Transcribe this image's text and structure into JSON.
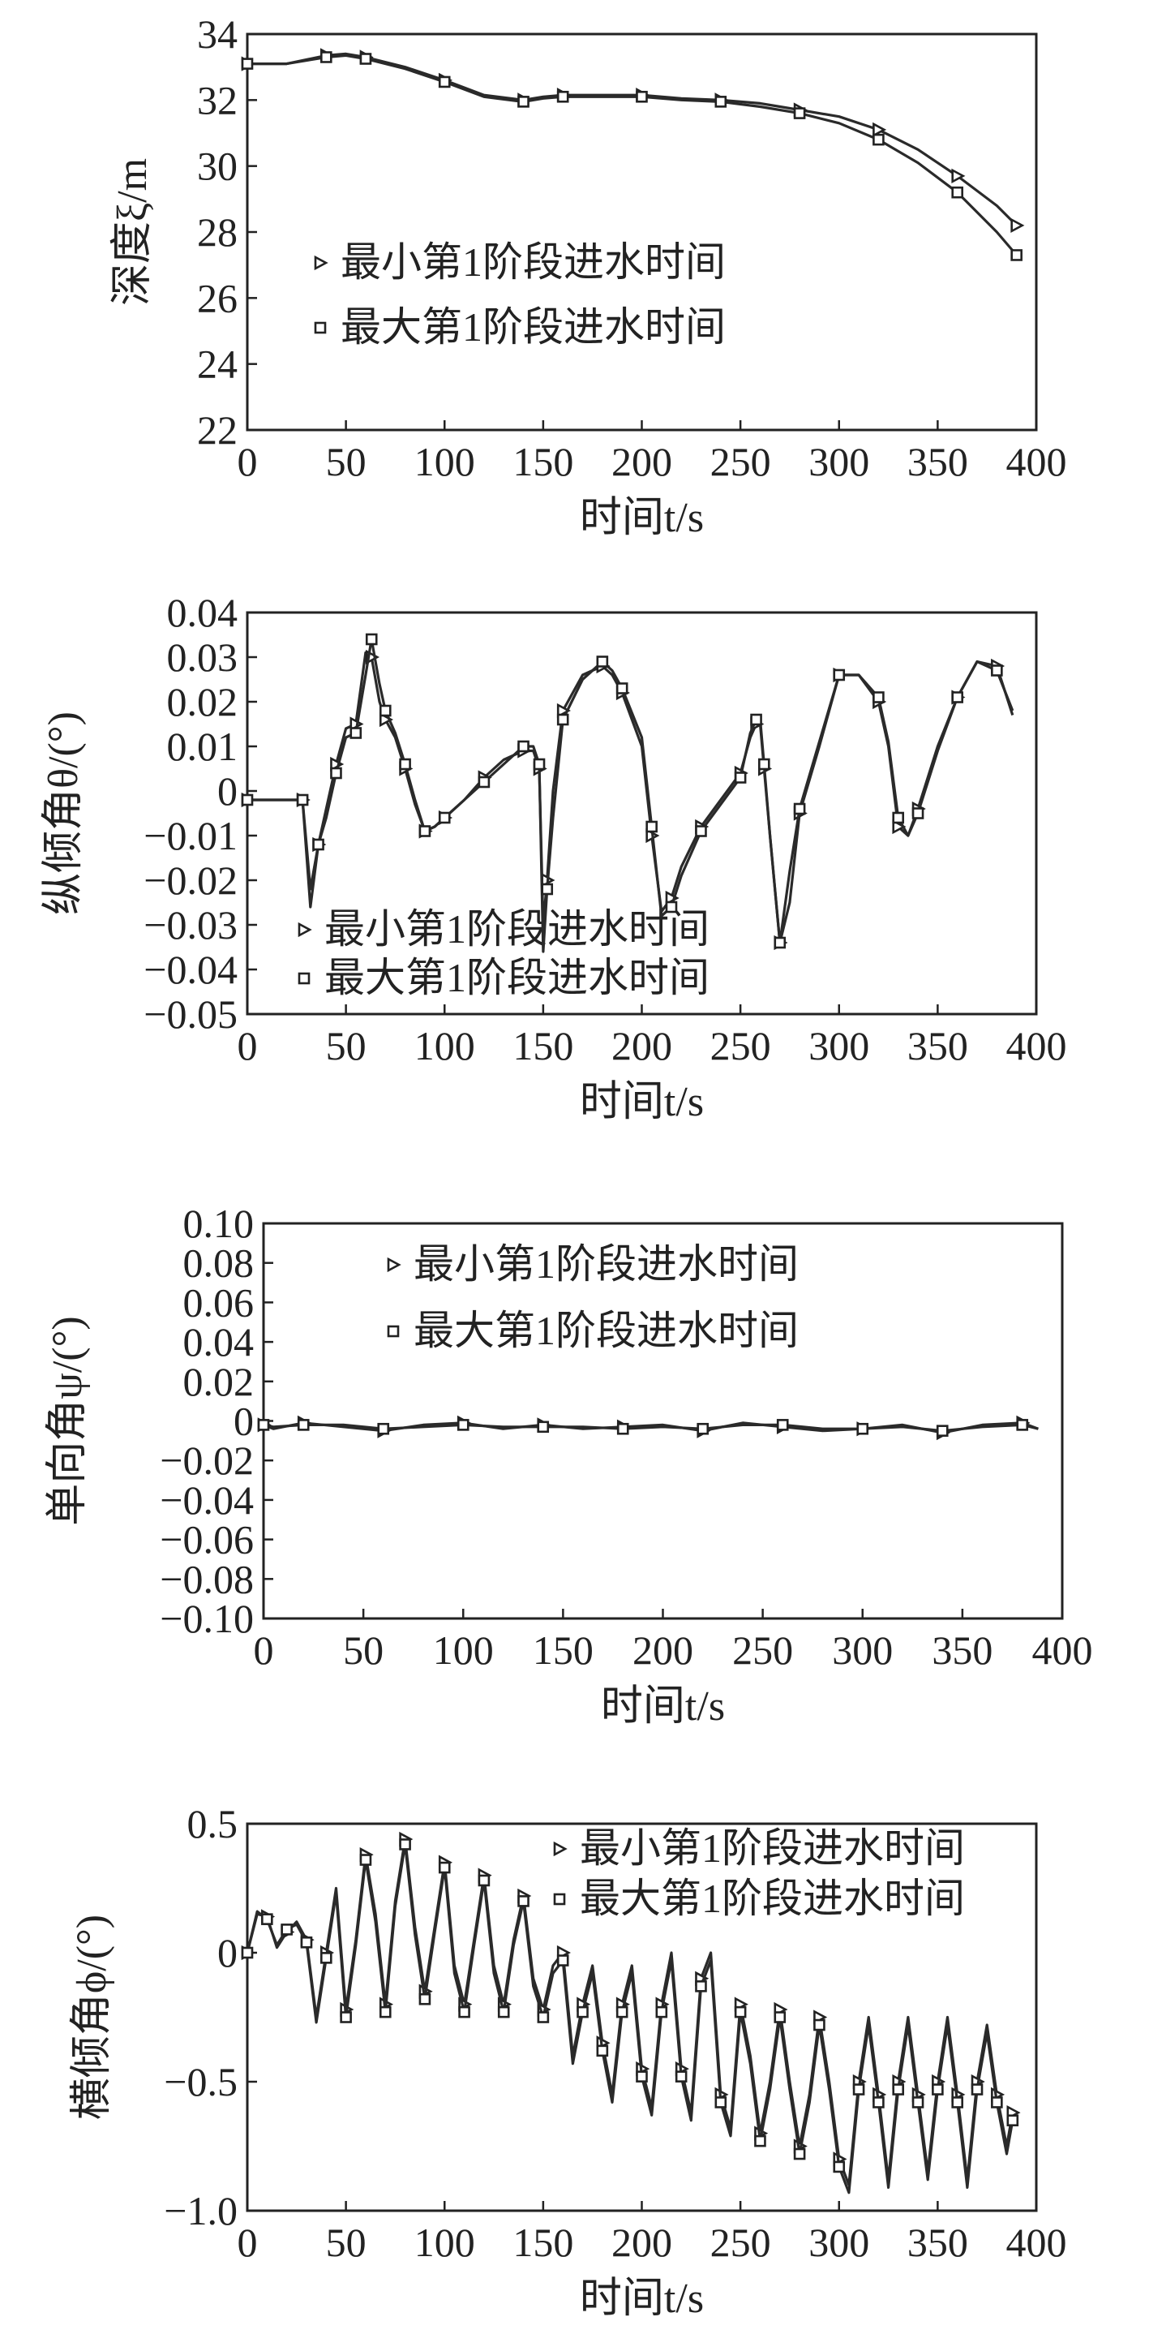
{
  "chart_data": [
    {
      "type": "line",
      "xlabel": "时间t/s",
      "ylabel": "深度ξ/m",
      "xlim": [
        0,
        400
      ],
      "ylim": [
        22,
        34
      ],
      "xticks": [
        "0",
        "50",
        "100",
        "150",
        "200",
        "250",
        "300",
        "350",
        "400"
      ],
      "yticks": [
        "22",
        "24",
        "26",
        "28",
        "30",
        "32",
        "34"
      ],
      "legend_position": "center-left",
      "series": [
        {
          "name": "最小第1阶段进水时间",
          "marker": "triangle-right",
          "x": [
            0,
            20,
            40,
            50,
            60,
            80,
            100,
            120,
            140,
            150,
            160,
            180,
            200,
            220,
            240,
            260,
            280,
            300,
            320,
            340,
            360,
            380,
            390
          ],
          "y": [
            33.1,
            33.1,
            33.35,
            33.4,
            33.3,
            33.0,
            32.6,
            32.15,
            32.0,
            32.1,
            32.15,
            32.15,
            32.15,
            32.05,
            32.0,
            31.9,
            31.7,
            31.5,
            31.1,
            30.5,
            29.7,
            28.8,
            28.2
          ]
        },
        {
          "name": "最大第1阶段进水时间",
          "marker": "square",
          "x": [
            0,
            20,
            40,
            50,
            60,
            80,
            100,
            120,
            140,
            150,
            160,
            180,
            200,
            220,
            240,
            260,
            280,
            300,
            320,
            340,
            360,
            380,
            390
          ],
          "y": [
            33.1,
            33.1,
            33.3,
            33.35,
            33.25,
            32.95,
            32.55,
            32.1,
            31.95,
            32.05,
            32.1,
            32.1,
            32.1,
            32.0,
            31.95,
            31.8,
            31.6,
            31.3,
            30.8,
            30.1,
            29.2,
            28.0,
            27.3
          ]
        }
      ]
    },
    {
      "type": "line",
      "xlabel": "时间t/s",
      "ylabel": "纵倾角θ/(°)",
      "xlim": [
        0,
        400
      ],
      "ylim": [
        -0.05,
        0.04
      ],
      "xticks": [
        "0",
        "50",
        "100",
        "150",
        "200",
        "250",
        "300",
        "350",
        "400"
      ],
      "yticks": [
        "−0.05",
        "−0.04",
        "−0.03",
        "−0.02",
        "−0.01",
        "0",
        "0.01",
        "0.02",
        "0.03",
        "0.04"
      ],
      "legend_position": "bottom-left",
      "series": [
        {
          "name": "最小第1阶段进水时间",
          "marker": "triangle-right",
          "x": [
            0,
            20,
            28,
            32,
            36,
            40,
            45,
            50,
            55,
            60,
            63,
            67,
            70,
            75,
            80,
            85,
            90,
            95,
            100,
            110,
            120,
            130,
            140,
            145,
            148,
            150,
            152,
            155,
            160,
            170,
            180,
            185,
            190,
            200,
            205,
            210,
            215,
            220,
            230,
            240,
            250,
            255,
            258,
            260,
            262,
            265,
            270,
            275,
            280,
            290,
            300,
            310,
            320,
            325,
            330,
            335,
            340,
            350,
            360,
            370,
            380,
            388
          ],
          "y": [
            -0.002,
            -0.002,
            -0.002,
            -0.026,
            -0.012,
            -0.004,
            0.006,
            0.014,
            0.015,
            0.031,
            0.03,
            0.02,
            0.016,
            0.012,
            0.005,
            -0.003,
            -0.009,
            -0.008,
            -0.006,
            -0.002,
            0.003,
            0.007,
            0.009,
            0.009,
            0.005,
            -0.03,
            -0.02,
            0.0,
            0.018,
            0.026,
            0.028,
            0.026,
            0.022,
            0.01,
            -0.01,
            -0.027,
            -0.024,
            -0.017,
            -0.008,
            -0.002,
            0.004,
            0.012,
            0.015,
            0.015,
            0.005,
            -0.01,
            -0.034,
            -0.025,
            -0.005,
            0.01,
            0.026,
            0.026,
            0.02,
            0.01,
            -0.008,
            -0.01,
            -0.004,
            0.01,
            0.021,
            0.029,
            0.028,
            0.017
          ]
        },
        {
          "name": "最大第1阶段进水时间",
          "marker": "square",
          "x": [
            0,
            20,
            28,
            32,
            36,
            40,
            45,
            50,
            55,
            60,
            63,
            67,
            70,
            75,
            80,
            85,
            90,
            95,
            100,
            110,
            120,
            130,
            140,
            145,
            148,
            150,
            152,
            155,
            160,
            170,
            180,
            185,
            190,
            200,
            205,
            210,
            215,
            220,
            230,
            240,
            250,
            255,
            258,
            260,
            262,
            265,
            270,
            275,
            280,
            290,
            300,
            310,
            320,
            325,
            330,
            335,
            340,
            350,
            360,
            370,
            380,
            388
          ],
          "y": [
            -0.002,
            -0.002,
            -0.002,
            -0.022,
            -0.012,
            -0.006,
            0.004,
            0.012,
            0.013,
            0.026,
            0.034,
            0.024,
            0.018,
            0.013,
            0.006,
            -0.002,
            -0.009,
            -0.008,
            -0.006,
            -0.002,
            0.002,
            0.006,
            0.01,
            0.01,
            0.006,
            -0.036,
            -0.022,
            -0.006,
            0.016,
            0.025,
            0.029,
            0.027,
            0.023,
            0.012,
            -0.008,
            -0.028,
            -0.026,
            -0.019,
            -0.009,
            -0.003,
            0.003,
            0.013,
            0.016,
            0.016,
            0.006,
            -0.01,
            -0.034,
            -0.018,
            -0.004,
            0.011,
            0.026,
            0.026,
            0.021,
            0.011,
            -0.006,
            -0.01,
            -0.005,
            0.009,
            0.021,
            0.029,
            0.027,
            0.018
          ]
        }
      ]
    },
    {
      "type": "line",
      "xlabel": "时间t/s",
      "ylabel": "单向角ψ/(°)",
      "xlim": [
        0,
        400
      ],
      "ylim": [
        -0.1,
        0.1
      ],
      "xticks": [
        "0",
        "50",
        "100",
        "150",
        "200",
        "250",
        "300",
        "350",
        "400"
      ],
      "yticks": [
        "−0.10",
        "−0.08",
        "−0.06",
        "−0.04",
        "−0.02",
        "0",
        "0.02",
        "0.04",
        "0.06",
        "0.08",
        "0.10"
      ],
      "legend_position": "top-center",
      "series": [
        {
          "name": "最小第1阶段进水时间",
          "marker": "triangle-right",
          "x": [
            0,
            5,
            20,
            40,
            60,
            80,
            100,
            120,
            140,
            160,
            180,
            200,
            220,
            240,
            260,
            280,
            300,
            320,
            340,
            360,
            380,
            388
          ],
          "y": [
            -0.002,
            -0.004,
            -0.001,
            -0.003,
            -0.005,
            -0.002,
            -0.001,
            -0.004,
            -0.002,
            -0.004,
            -0.003,
            -0.002,
            -0.005,
            -0.001,
            -0.003,
            -0.005,
            -0.004,
            -0.002,
            -0.006,
            -0.002,
            -0.001,
            -0.004
          ]
        },
        {
          "name": "最大第1阶段进水时间",
          "marker": "square",
          "x": [
            0,
            5,
            20,
            40,
            60,
            80,
            100,
            120,
            140,
            160,
            180,
            200,
            220,
            240,
            260,
            280,
            300,
            320,
            340,
            360,
            380,
            388
          ],
          "y": [
            -0.002,
            -0.003,
            -0.002,
            -0.002,
            -0.004,
            -0.003,
            -0.002,
            -0.003,
            -0.003,
            -0.003,
            -0.004,
            -0.003,
            -0.004,
            -0.002,
            -0.002,
            -0.004,
            -0.004,
            -0.003,
            -0.005,
            -0.003,
            -0.002,
            -0.004
          ]
        }
      ]
    },
    {
      "type": "line",
      "xlabel": "时间t/s",
      "ylabel": "横倾角ϕ/(°)",
      "xlim": [
        0,
        400
      ],
      "ylim": [
        -1.0,
        0.5
      ],
      "xticks": [
        "0",
        "50",
        "100",
        "150",
        "200",
        "250",
        "300",
        "350",
        "400"
      ],
      "yticks": [
        "−1.0",
        "−0.5",
        "0",
        "0.5"
      ],
      "legend_position": "top-right",
      "series": [
        {
          "name": "最小第1阶段进水时间",
          "marker": "triangle-right",
          "x": [
            0,
            5,
            10,
            15,
            20,
            25,
            30,
            35,
            40,
            45,
            50,
            55,
            60,
            65,
            70,
            75,
            80,
            85,
            90,
            95,
            100,
            105,
            110,
            115,
            120,
            125,
            130,
            135,
            140,
            145,
            150,
            155,
            160,
            165,
            170,
            175,
            180,
            185,
            190,
            195,
            200,
            205,
            210,
            215,
            220,
            225,
            230,
            235,
            240,
            245,
            250,
            255,
            260,
            265,
            270,
            275,
            280,
            285,
            290,
            295,
            300,
            305,
            310,
            315,
            320,
            325,
            330,
            335,
            340,
            345,
            350,
            355,
            360,
            365,
            370,
            375,
            380,
            385,
            388
          ],
          "y": [
            0.0,
            0.15,
            0.14,
            0.02,
            0.08,
            0.12,
            0.05,
            -0.25,
            0.0,
            0.25,
            -0.22,
            0.05,
            0.38,
            0.15,
            -0.2,
            0.2,
            0.44,
            0.1,
            -0.15,
            0.1,
            0.35,
            -0.05,
            -0.2,
            0.05,
            0.3,
            -0.05,
            -0.2,
            0.05,
            0.22,
            -0.1,
            -0.22,
            -0.05,
            0.0,
            -0.4,
            -0.2,
            -0.05,
            -0.35,
            -0.55,
            -0.2,
            -0.05,
            -0.45,
            -0.6,
            -0.2,
            0.0,
            -0.45,
            -0.62,
            -0.1,
            0.0,
            -0.55,
            -0.68,
            -0.2,
            -0.4,
            -0.7,
            -0.5,
            -0.22,
            -0.5,
            -0.75,
            -0.55,
            -0.25,
            -0.5,
            -0.8,
            -0.9,
            -0.5,
            -0.25,
            -0.55,
            -0.88,
            -0.5,
            -0.25,
            -0.55,
            -0.85,
            -0.5,
            -0.25,
            -0.55,
            -0.88,
            -0.5,
            -0.28,
            -0.55,
            -0.75,
            -0.62
          ]
        },
        {
          "name": "最大第1阶段进水时间",
          "marker": "square",
          "x": [
            0,
            5,
            10,
            15,
            20,
            25,
            30,
            35,
            40,
            45,
            50,
            55,
            60,
            65,
            70,
            75,
            80,
            85,
            90,
            95,
            100,
            105,
            110,
            115,
            120,
            125,
            130,
            135,
            140,
            145,
            150,
            155,
            160,
            165,
            170,
            175,
            180,
            185,
            190,
            195,
            200,
            205,
            210,
            215,
            220,
            225,
            230,
            235,
            240,
            245,
            250,
            255,
            260,
            265,
            270,
            275,
            280,
            285,
            290,
            295,
            300,
            305,
            310,
            315,
            320,
            325,
            330,
            335,
            340,
            345,
            350,
            355,
            360,
            365,
            370,
            375,
            380,
            385,
            388
          ],
          "y": [
            0.0,
            0.16,
            0.13,
            0.03,
            0.09,
            0.11,
            0.04,
            -0.27,
            -0.02,
            0.23,
            -0.25,
            0.03,
            0.36,
            0.12,
            -0.23,
            0.18,
            0.42,
            0.07,
            -0.18,
            0.08,
            0.33,
            -0.08,
            -0.23,
            0.03,
            0.28,
            -0.08,
            -0.23,
            0.03,
            0.2,
            -0.13,
            -0.25,
            -0.08,
            -0.03,
            -0.43,
            -0.23,
            -0.08,
            -0.38,
            -0.58,
            -0.23,
            -0.08,
            -0.48,
            -0.63,
            -0.23,
            -0.03,
            -0.48,
            -0.65,
            -0.13,
            -0.03,
            -0.58,
            -0.71,
            -0.23,
            -0.43,
            -0.73,
            -0.53,
            -0.25,
            -0.53,
            -0.78,
            -0.58,
            -0.28,
            -0.53,
            -0.83,
            -0.93,
            -0.53,
            -0.28,
            -0.58,
            -0.91,
            -0.53,
            -0.28,
            -0.58,
            -0.88,
            -0.53,
            -0.28,
            -0.58,
            -0.91,
            -0.53,
            -0.31,
            -0.58,
            -0.78,
            -0.65
          ]
        }
      ]
    }
  ]
}
